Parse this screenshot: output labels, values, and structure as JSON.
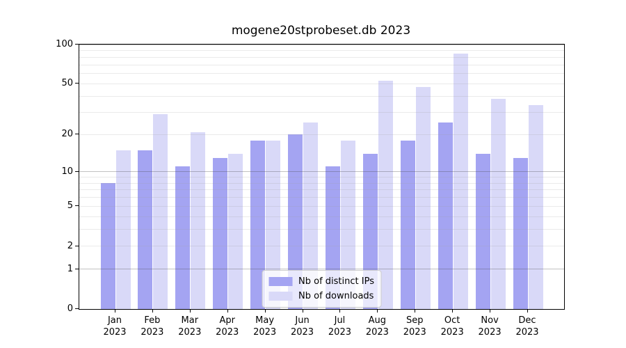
{
  "title": "mogene20stprobeset.db 2023",
  "chart_data": {
    "type": "bar",
    "title": "mogene20stprobeset.db 2023",
    "categories": [
      "Jan",
      "Feb",
      "Mar",
      "Apr",
      "May",
      "Jun",
      "Jul",
      "Aug",
      "Sep",
      "Oct",
      "Nov",
      "Dec"
    ],
    "category_year": "2023",
    "series": [
      {
        "name": "Nb of distinct IPs",
        "color": "#a4a4f2",
        "values": [
          8,
          15,
          11,
          13,
          18,
          20,
          11,
          14,
          18,
          25,
          14,
          13
        ]
      },
      {
        "name": "Nb of downloads",
        "color": "#d9d9f8",
        "values": [
          15,
          29,
          21,
          14,
          18,
          25,
          18,
          53,
          47,
          85,
          38,
          34
        ]
      }
    ],
    "xlabel": "",
    "ylabel": "",
    "yscale": "log1p",
    "ylim": [
      0,
      100
    ],
    "yticks_labeled": [
      0,
      1,
      2,
      5,
      10,
      20,
      50,
      100
    ],
    "ygrid_major": [
      1,
      10,
      100
    ],
    "ygrid_minor": [
      2,
      3,
      4,
      5,
      6,
      7,
      8,
      9,
      20,
      30,
      40,
      50,
      60,
      70,
      80,
      90
    ],
    "grid": true,
    "legend_position": "lower-center"
  }
}
